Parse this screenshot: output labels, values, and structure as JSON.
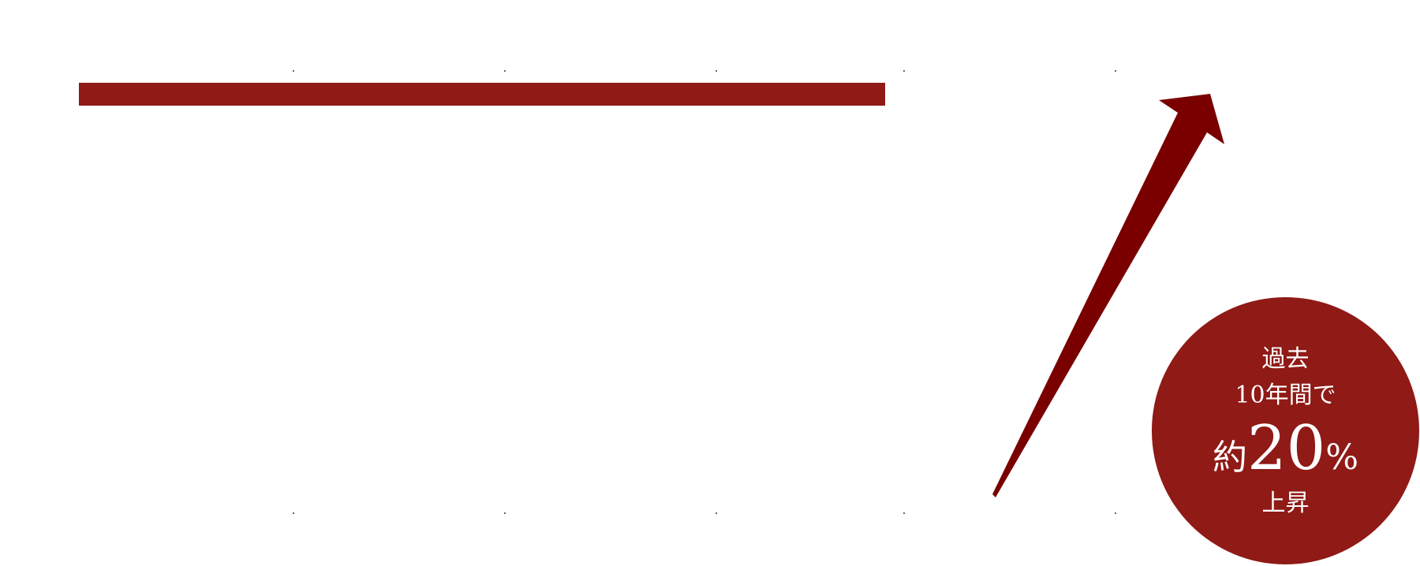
{
  "colors": {
    "bar": "#8f1a16",
    "arrow": "#7a0000",
    "badge_background": "#8f1a16",
    "badge_text": "#ffffff"
  },
  "icons": {
    "arrow": "trend-up-arrow-icon"
  },
  "badge": {
    "line1": "過去",
    "line2": "10年間で",
    "prefix": "約",
    "value": "20",
    "suffix": "%",
    "line4": "上昇"
  }
}
